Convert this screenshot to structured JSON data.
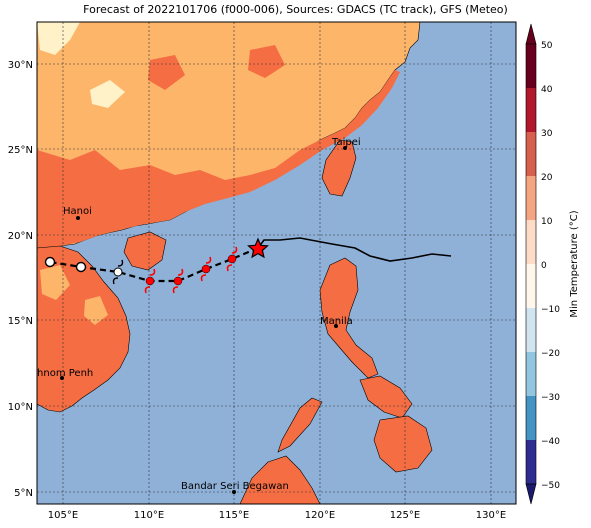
{
  "title": "Forecast of 2022101706 (f000-006), Sources: GDACS (TC track), GFS (Meteo)",
  "map": {
    "lat_ticks": [
      "30°N",
      "25°N",
      "20°N",
      "15°N",
      "10°N",
      "5°N"
    ],
    "lon_ticks": [
      "105°E",
      "110°E",
      "115°E",
      "120°E",
      "125°E",
      "130°E"
    ],
    "colors": {
      "ocean": "#8fb1d8",
      "land_10_20": "#fdb56a",
      "land_20_30": "#f46d43",
      "land_0_10": "#fff1c8",
      "grid": "#333333",
      "track": "#000000",
      "storm_icon": "#ff0000"
    }
  },
  "cities": [
    {
      "name": "Hanoi"
    },
    {
      "name": "Taipei"
    },
    {
      "name": "Manila"
    },
    {
      "name": "Phnom Penh"
    },
    {
      "name": "Bandar Seri Begawan"
    }
  ],
  "colorbar": {
    "label": "Min Temperature (°C)",
    "ticks": [
      "50",
      "40",
      "30",
      "20",
      "10",
      "0",
      "−10",
      "−20",
      "−30",
      "−40",
      "−50"
    ],
    "colors": [
      "#67001f",
      "#b2182b",
      "#d6604d",
      "#f4a582",
      "#fddbc7",
      "#fff7ec",
      "#d1e5f0",
      "#92c5de",
      "#4393c3",
      "#2166ac",
      "#2d2d8f",
      "#1a1a6e"
    ]
  },
  "legend_icons": {
    "current_position": "star-icon",
    "forecast_positions": "typhoon-icon",
    "past_positions": "circle-icon"
  }
}
